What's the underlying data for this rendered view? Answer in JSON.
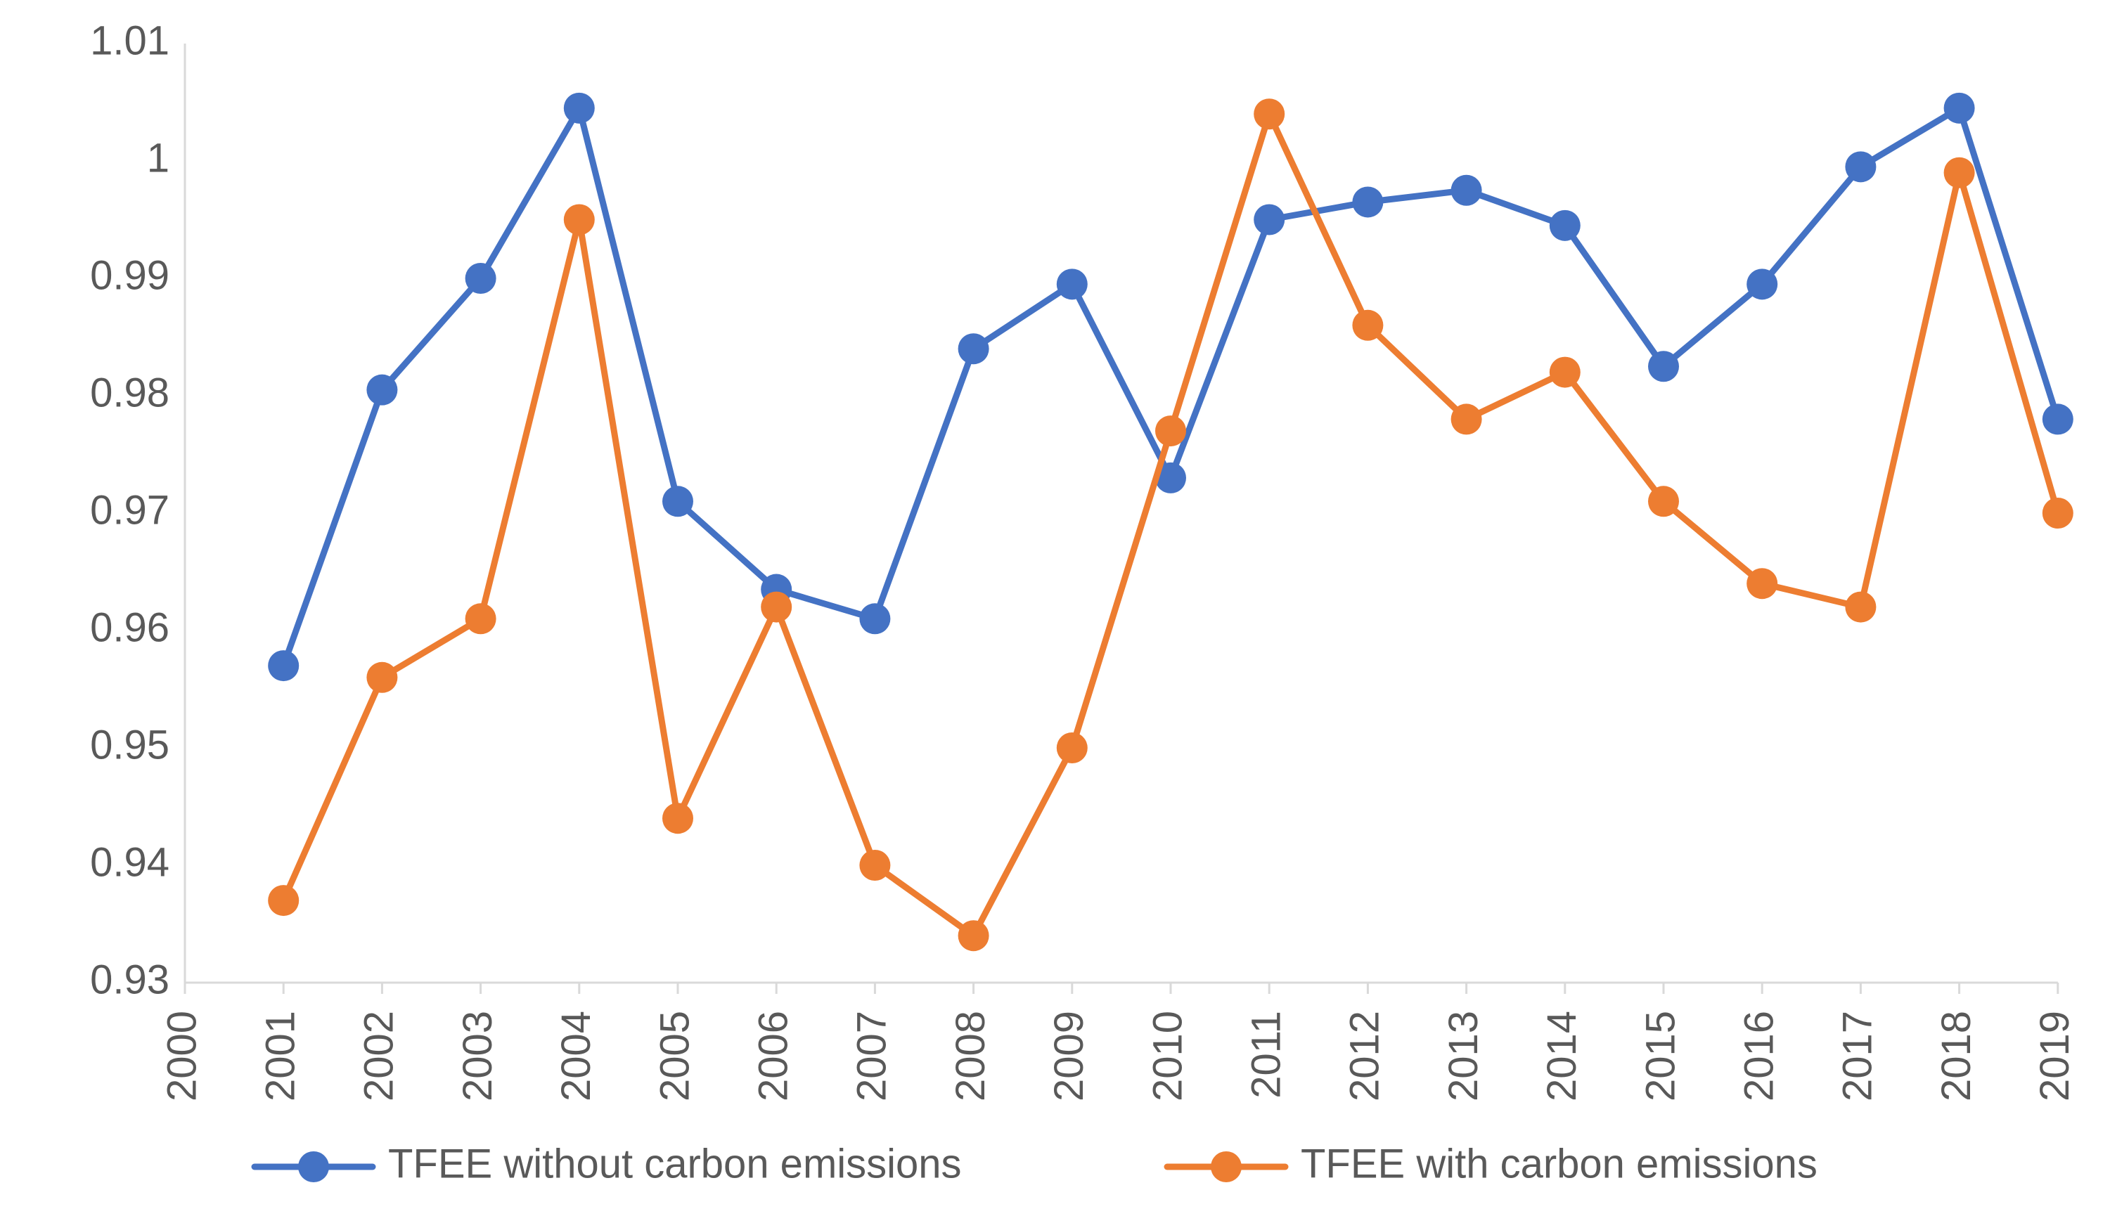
{
  "chart_data": {
    "type": "line",
    "title": "",
    "xlabel": "",
    "ylabel": "",
    "x": [
      "2000",
      "2001",
      "2002",
      "2003",
      "2004",
      "2005",
      "2006",
      "2007",
      "2008",
      "2009",
      "2010",
      "2011",
      "2012",
      "2013",
      "2014",
      "2015",
      "2016",
      "2017",
      "2018",
      "2019"
    ],
    "y_ticks": [
      "0.93",
      "0.94",
      "0.95",
      "0.96",
      "0.97",
      "0.98",
      "0.99",
      "1",
      "1.01"
    ],
    "ylim": [
      0.93,
      1.01
    ],
    "grid": false,
    "legend_position": "bottom",
    "series": [
      {
        "name": "TFEE without carbon emissions",
        "color": "#4472C4",
        "x": [
          "2001",
          "2002",
          "2003",
          "2004",
          "2005",
          "2006",
          "2007",
          "2008",
          "2009",
          "2010",
          "2011",
          "2012",
          "2013",
          "2014",
          "2015",
          "2016",
          "2017",
          "2018",
          "2019"
        ],
        "values": [
          0.957,
          0.9805,
          0.99,
          1.0045,
          0.971,
          0.9635,
          0.961,
          0.984,
          0.9895,
          0.973,
          0.995,
          0.9965,
          0.9975,
          0.9945,
          0.9825,
          0.9895,
          0.9995,
          1.0045,
          0.978
        ]
      },
      {
        "name": "TFEE with carbon emissions",
        "color": "#ED7D31",
        "x": [
          "2001",
          "2002",
          "2003",
          "2004",
          "2005",
          "2006",
          "2007",
          "2008",
          "2009",
          "2010",
          "2011",
          "2012",
          "2013",
          "2014",
          "2015",
          "2016",
          "2017",
          "2018",
          "2019"
        ],
        "values": [
          0.937,
          0.956,
          0.961,
          0.995,
          0.944,
          0.962,
          0.94,
          0.934,
          0.95,
          0.977,
          1.004,
          0.986,
          0.978,
          0.982,
          0.971,
          0.964,
          0.962,
          0.999,
          0.97
        ]
      }
    ]
  }
}
